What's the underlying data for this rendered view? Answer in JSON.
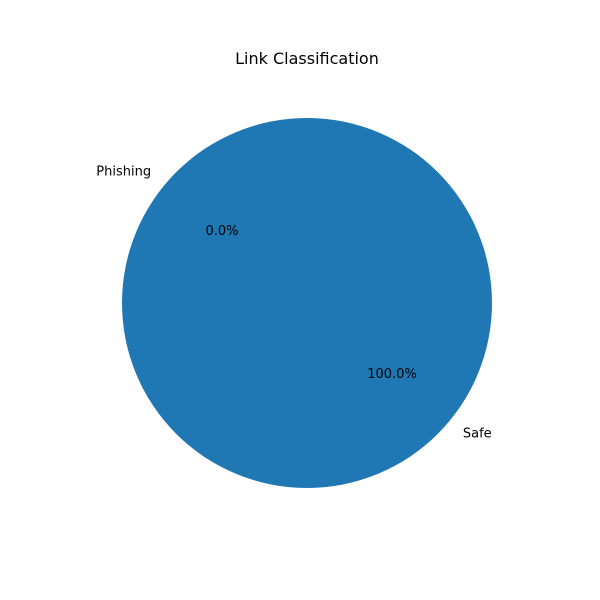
{
  "chart_data": {
    "type": "pie",
    "title": "Link Classification",
    "categories": [
      "Phishing",
      "Safe"
    ],
    "values": [
      0,
      100
    ],
    "percent_labels": [
      "0.0%",
      "100.0%"
    ],
    "colors": [
      "#ff7f0e",
      "#1f77b4"
    ],
    "start_angle_deg": 140,
    "legend": "none",
    "grid": false
  }
}
